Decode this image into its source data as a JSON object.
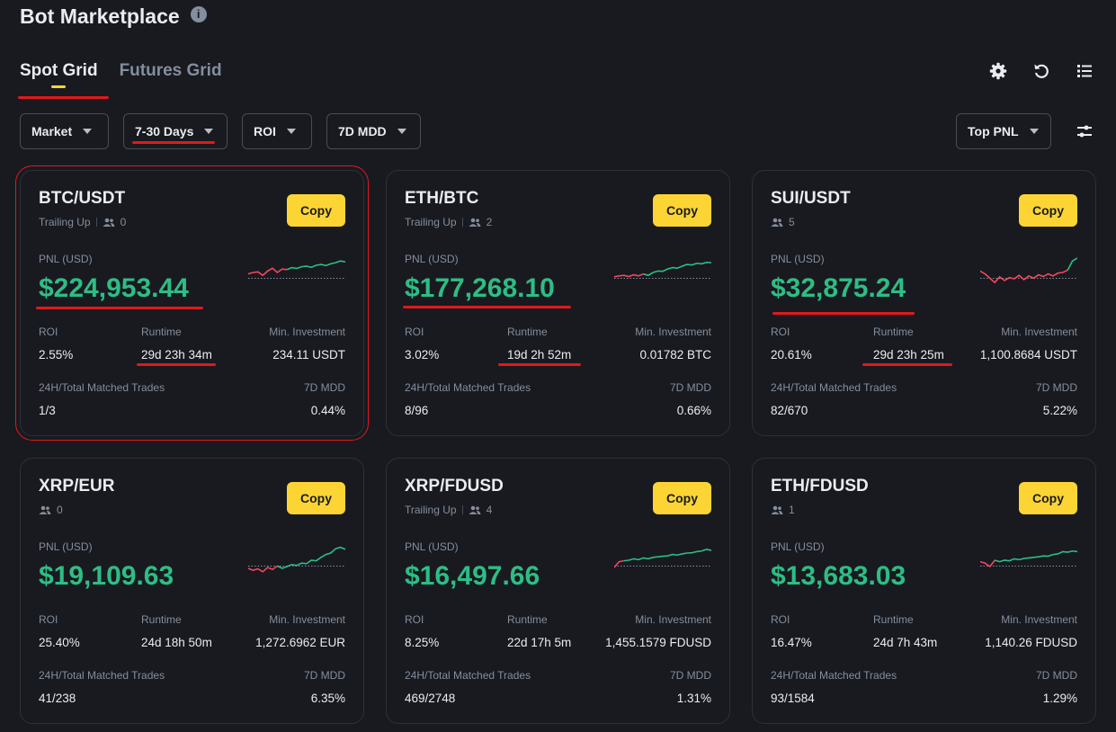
{
  "page": {
    "title": "Bot Marketplace",
    "info_icon": "i"
  },
  "tabs": [
    {
      "label": "Spot Grid",
      "active": true
    },
    {
      "label": "Futures Grid",
      "active": false
    }
  ],
  "top_icons": [
    "gear-icon",
    "refresh-icon",
    "list-icon"
  ],
  "filters": [
    {
      "label": "Market"
    },
    {
      "label": "7-30 Days"
    },
    {
      "label": "ROI"
    },
    {
      "label": "7D MDD"
    }
  ],
  "sort": {
    "label": "Top PNL"
  },
  "labels": {
    "copy": "Copy",
    "pnl": "PNL (USD)",
    "roi": "ROI",
    "runtime": "Runtime",
    "min_investment": "Min. Investment",
    "matched_trades": "24H/Total Matched Trades",
    "mdd": "7D MDD"
  },
  "colors": {
    "accent": "#fcd535",
    "positive": "#2ebd85",
    "negative": "#f6465d",
    "annotation": "#e0191b"
  },
  "cards": [
    {
      "pair": "BTC/USDT",
      "strategy": "Trailing Up",
      "copiers": "0",
      "pnl": "$224,953.44",
      "roi": "2.55%",
      "runtime": "29d 23h 34m",
      "min_investment": "234.11 USDT",
      "matched_trades": "1/3",
      "mdd": "0.44%",
      "spark": [
        0.55,
        0.5,
        0.48,
        0.6,
        0.45,
        0.35,
        0.5,
        0.38,
        0.4,
        0.33,
        0.36,
        0.3,
        0.28,
        0.32,
        0.25,
        0.22,
        0.26,
        0.2,
        0.16,
        0.1,
        0.13
      ],
      "spark_split": 0.42
    },
    {
      "pair": "ETH/BTC",
      "strategy": "Trailing Up",
      "copiers": "2",
      "pnl": "$177,268.10",
      "roi": "3.02%",
      "runtime": "19d 2h 52m",
      "min_investment": "0.01782 BTC",
      "matched_trades": "8/96",
      "mdd": "0.66%",
      "spark": [
        0.65,
        0.62,
        0.6,
        0.64,
        0.58,
        0.62,
        0.55,
        0.6,
        0.5,
        0.45,
        0.46,
        0.38,
        0.33,
        0.35,
        0.28,
        0.22,
        0.24,
        0.18,
        0.2,
        0.15,
        0.16
      ],
      "spark_split": 0.32
    },
    {
      "pair": "SUI/USDT",
      "strategy": "",
      "copiers": "5",
      "pnl": "$32,875.24",
      "roi": "20.61%",
      "runtime": "29d 23h 25m",
      "min_investment": "1,100.8684 USDT",
      "matched_trades": "82/670",
      "mdd": "5.22%",
      "spark": [
        0.45,
        0.55,
        0.7,
        0.85,
        0.65,
        0.78,
        0.68,
        0.72,
        0.6,
        0.75,
        0.62,
        0.7,
        0.58,
        0.64,
        0.55,
        0.62,
        0.52,
        0.5,
        0.42,
        0.1,
        0.0
      ],
      "spark_split": 0.9
    },
    {
      "pair": "XRP/EUR",
      "strategy": "",
      "copiers": "0",
      "pnl": "$19,109.63",
      "roi": "25.40%",
      "runtime": "24d 18h 50m",
      "min_investment": "1,272.6962 EUR",
      "matched_trades": "41/238",
      "mdd": "6.35%",
      "spark": [
        0.78,
        0.85,
        0.8,
        0.9,
        0.75,
        0.82,
        0.7,
        0.78,
        0.72,
        0.65,
        0.68,
        0.6,
        0.62,
        0.5,
        0.52,
        0.4,
        0.3,
        0.25,
        0.1,
        0.05,
        0.12
      ],
      "spark_split": 0.3
    },
    {
      "pair": "XRP/FDUSD",
      "strategy": "Trailing Up",
      "copiers": "4",
      "pnl": "$16,497.66",
      "roi": "8.25%",
      "runtime": "22d 17h 5m",
      "min_investment": "1,455.1579 FDUSD",
      "matched_trades": "469/2748",
      "mdd": "1.31%",
      "spark": [
        0.75,
        0.55,
        0.52,
        0.5,
        0.45,
        0.48,
        0.42,
        0.45,
        0.4,
        0.38,
        0.36,
        0.35,
        0.3,
        0.32,
        0.28,
        0.25,
        0.24,
        0.2,
        0.18,
        0.12,
        0.16
      ],
      "spark_split": 0.08
    },
    {
      "pair": "ETH/FDUSD",
      "strategy": "",
      "copiers": "1",
      "pnl": "$13,683.03",
      "roi": "16.47%",
      "runtime": "24d 7h 43m",
      "min_investment": "1,140.26 FDUSD",
      "matched_trades": "93/1584",
      "mdd": "1.29%",
      "spark": [
        0.55,
        0.6,
        0.72,
        0.5,
        0.55,
        0.5,
        0.52,
        0.45,
        0.48,
        0.44,
        0.42,
        0.4,
        0.38,
        0.35,
        0.36,
        0.3,
        0.28,
        0.2,
        0.22,
        0.18,
        0.2
      ],
      "spark_split": 0.15
    }
  ]
}
